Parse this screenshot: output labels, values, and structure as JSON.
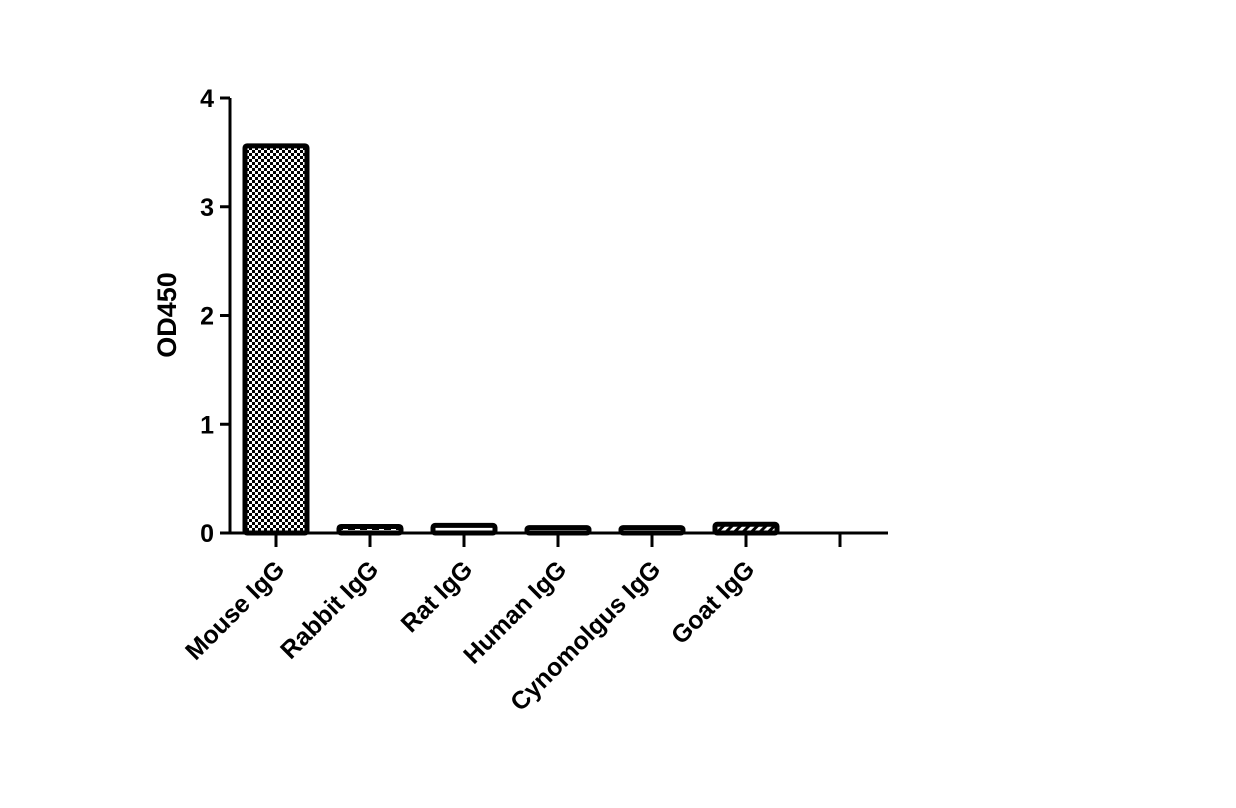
{
  "chart_data": {
    "type": "bar",
    "title": "",
    "xlabel": "",
    "ylabel": "OD450",
    "ylim": [
      0,
      4
    ],
    "yticks": [
      0,
      1,
      2,
      3,
      4
    ],
    "ytick_labels": [
      "0",
      "1",
      "2",
      "3",
      "4"
    ],
    "categories": [
      "Mouse IgG",
      "Rabbit IgG",
      "Rat IgG",
      "Human IgG",
      "Cynomolgus IgG",
      "Goat IgG",
      ""
    ],
    "values": [
      3.56,
      0.06,
      0.07,
      0.05,
      0.05,
      0.08,
      null
    ],
    "patterns": [
      "checker",
      "dashed",
      "open",
      "dashed",
      "dashed",
      "hatched",
      "none"
    ],
    "grid": false,
    "legend": "none",
    "colors": {
      "bar_stroke": "#000000",
      "bar_fill": "#ffffff"
    }
  }
}
